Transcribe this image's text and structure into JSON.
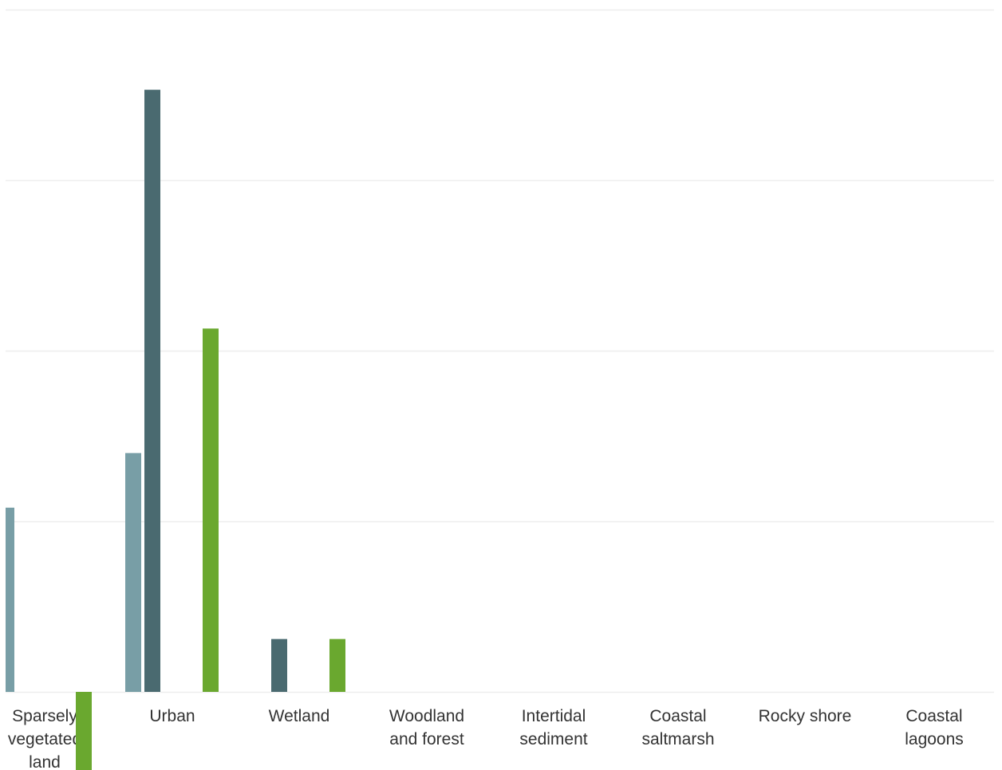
{
  "chart_data": {
    "type": "bar",
    "title": "",
    "xlabel": "",
    "ylabel": "",
    "categories": [
      [
        "Sparsely",
        "vegetated",
        "land"
      ],
      [
        "Urban"
      ],
      [
        "Wetland"
      ],
      [
        "Woodland",
        "and forest"
      ],
      [
        "Intertidal",
        "sediment"
      ],
      [
        "Coastal",
        "saltmarsh"
      ],
      [
        "Rocky shore"
      ],
      [
        "Coastal",
        "lagoons"
      ]
    ],
    "series": [
      {
        "color": "#789ea6",
        "values": [
          1.08,
          1.4,
          0,
          0,
          0,
          0,
          0,
          0
        ]
      },
      {
        "color": "#4a6a70",
        "values": [
          0,
          3.53,
          0.31,
          0,
          0,
          0,
          0,
          0
        ]
      },
      {
        "color": "#6aa82f",
        "values": [
          -0.46,
          2.13,
          0.31,
          0,
          0,
          0,
          0,
          0
        ]
      }
    ],
    "ylim": [
      -0.46,
      4
    ],
    "gridlines": [
      0,
      1,
      2,
      3,
      4
    ],
    "grid": true,
    "legend": "none"
  }
}
